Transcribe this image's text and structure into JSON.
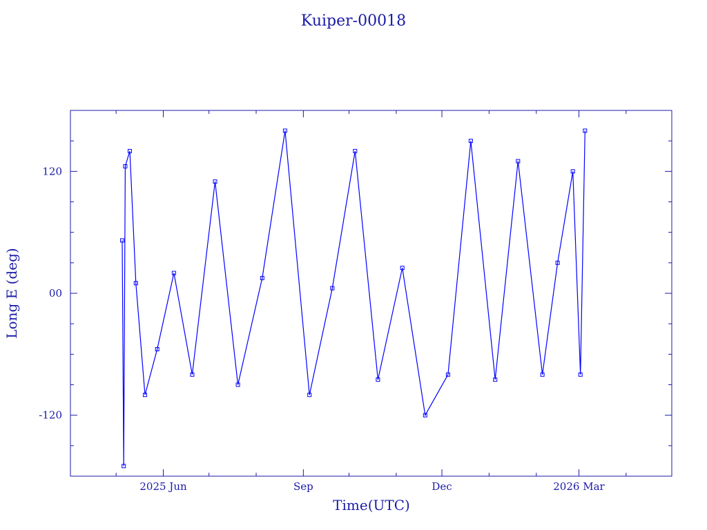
{
  "chart_data": {
    "type": "line",
    "title": "Kuiper-00018",
    "xlabel": "Time(UTC)",
    "ylabel": "Long E (deg)",
    "xlim": [
      "2025-04-01",
      "2026-05-01"
    ],
    "ylim": [
      -180,
      180
    ],
    "x_ticks": [
      {
        "label": "2025 Jun",
        "date": "2025-06-01"
      },
      {
        "label": "Sep",
        "date": "2025-09-01"
      },
      {
        "label": "Dec",
        "date": "2025-12-01"
      },
      {
        "label": "2026 Mar",
        "date": "2026-03-01"
      }
    ],
    "y_ticks": [
      {
        "label": "120",
        "value": 120
      },
      {
        "label": "00",
        "value": 0
      },
      {
        "label": "-120",
        "value": -120
      }
    ],
    "series": [
      {
        "color": "#0000ff",
        "marker": "square",
        "x": [
          "2025-05-05",
          "2025-05-06",
          "2025-05-07",
          "2025-05-10",
          "2025-05-14",
          "2025-05-20",
          "2025-05-28",
          "2025-06-08",
          "2025-06-20",
          "2025-07-05",
          "2025-07-20",
          "2025-08-05",
          "2025-08-20",
          "2025-09-05",
          "2025-09-20",
          "2025-10-05",
          "2025-10-20",
          "2025-11-05",
          "2025-11-20",
          "2025-12-05",
          "2025-12-20",
          "2026-01-05",
          "2026-01-20",
          "2026-02-05",
          "2026-02-15",
          "2026-02-25",
          "2026-03-02",
          "2026-03-05"
        ],
        "y": [
          52,
          -170,
          125,
          140,
          10,
          -100,
          -55,
          20,
          -80,
          110,
          -90,
          15,
          160,
          -100,
          5,
          140,
          -85,
          25,
          -120,
          -80,
          150,
          -85,
          130,
          -80,
          30,
          120,
          -80,
          160
        ]
      }
    ]
  }
}
